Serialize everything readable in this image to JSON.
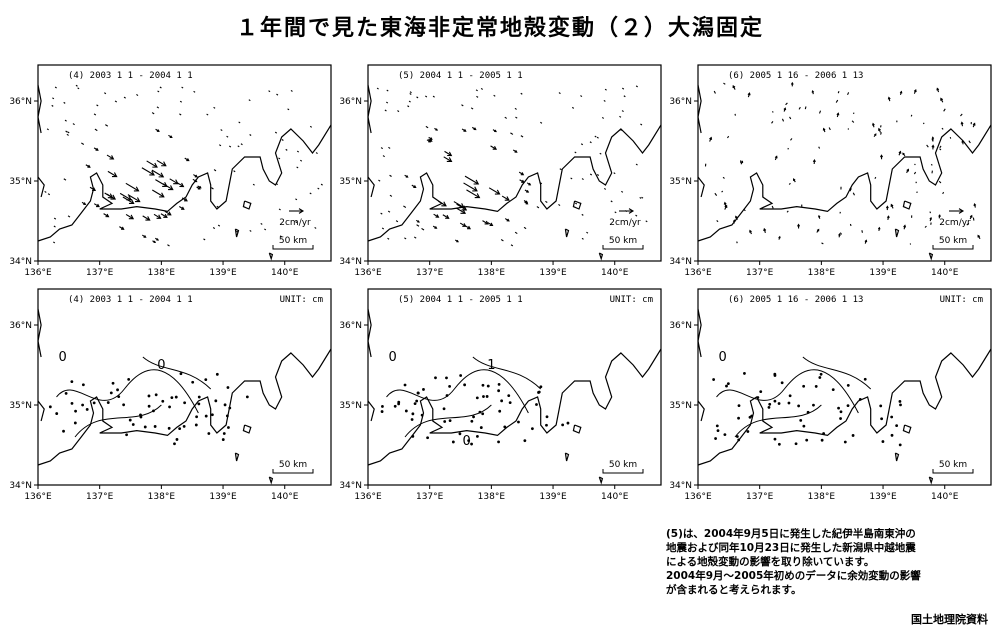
{
  "title": "１年間で見た東海非定常地殻変動（２）大潟固定",
  "axes": {
    "lon_labels": [
      "136°E",
      "137°E",
      "138°E",
      "139°E",
      "140°E"
    ],
    "lat_labels": [
      "36°N",
      "35°N",
      "34°N"
    ]
  },
  "scale_bar": "50 km",
  "velocity_scale": "2cm/yr",
  "unit_label": "UNIT: cm",
  "panels_top": [
    {
      "label": "(4)  2003 1 1 - 2004 1 1"
    },
    {
      "label": "(5)  2004 1 1 - 2005 1 1"
    },
    {
      "label": "(6)  2005 1 16 - 2006 1 13"
    }
  ],
  "panels_bottom": [
    {
      "label": "(4)  2003 1 1 - 2004 1 1",
      "contour_labels": [
        "0",
        "0"
      ]
    },
    {
      "label": "(5)  2004 1 1 - 2005 1 1",
      "contour_labels": [
        "0",
        "1",
        "0"
      ]
    },
    {
      "label": "(6)  2005 1 16 - 2006 1 13",
      "contour_labels": [
        "0"
      ]
    }
  ],
  "note": [
    "(5)は、2004年9月5日に発生した紀伊半島南東沖の",
    "地震および同年10月23日に発生した新潟県中越地震",
    "による地殻変動の影響を取り除いています。",
    "2004年9月～2005年初めのデータに余効変動の影響",
    "が含まれると考えられます。"
  ],
  "credit": "国土地理院資料"
}
